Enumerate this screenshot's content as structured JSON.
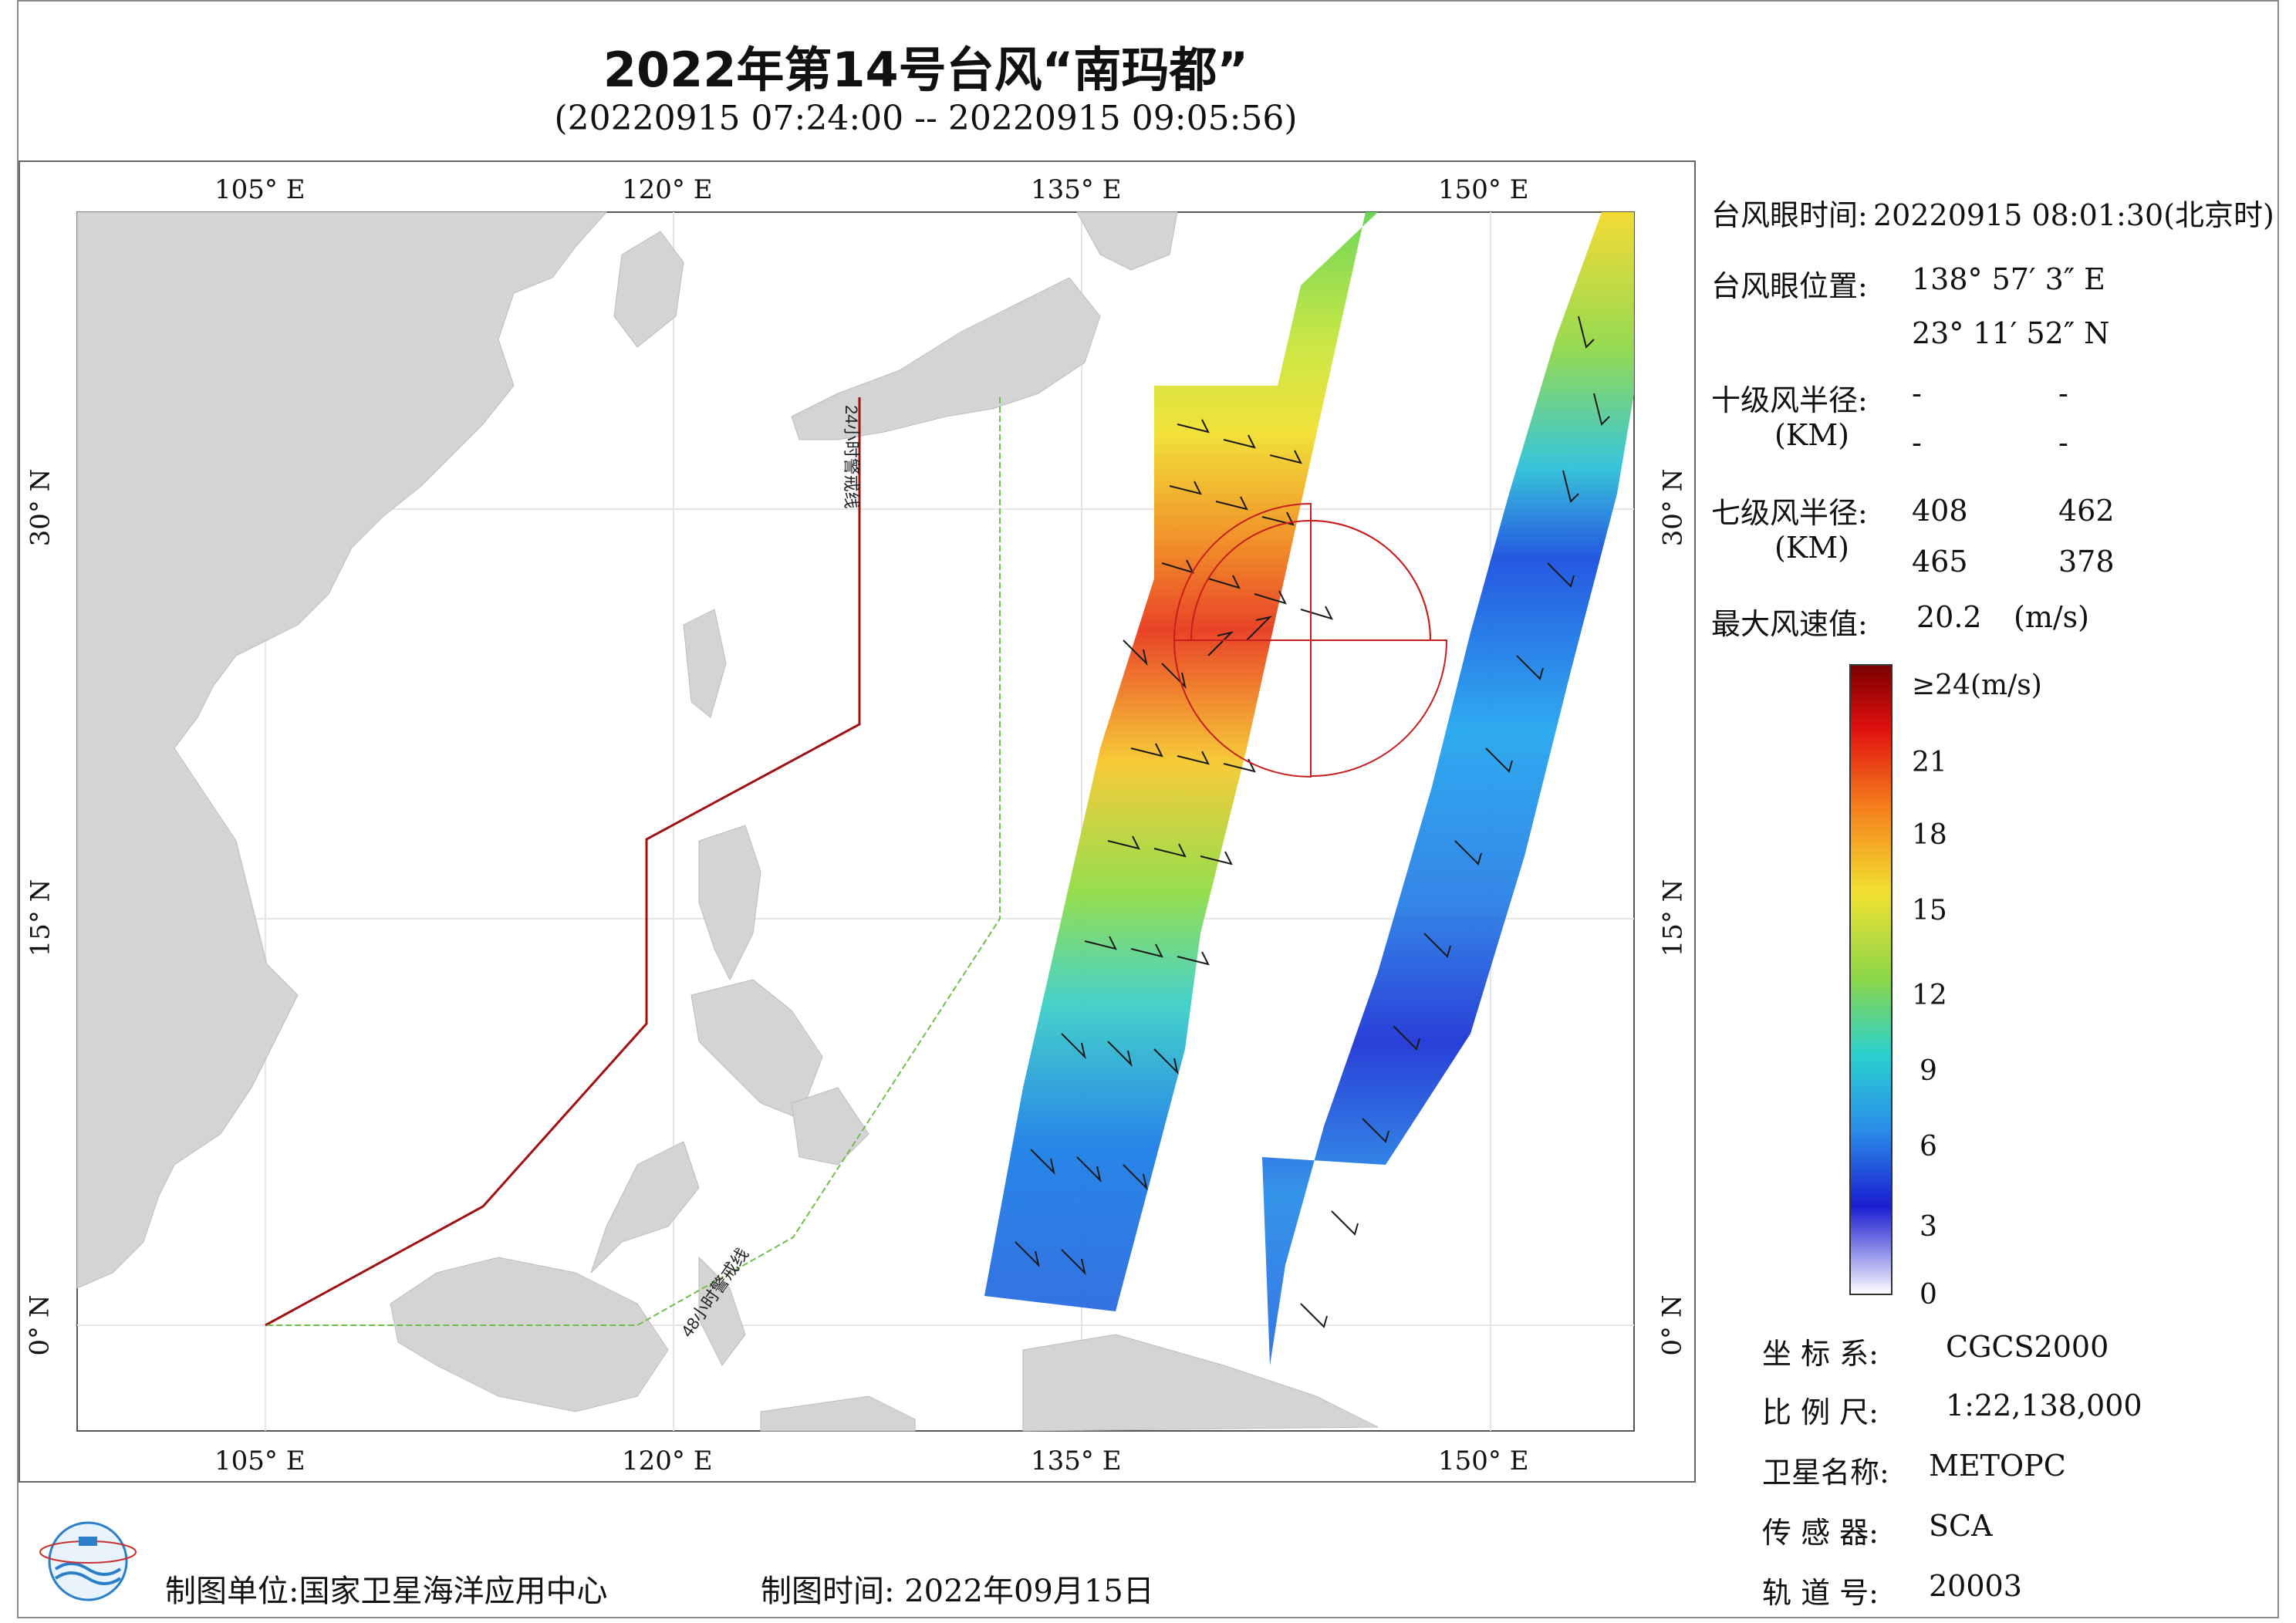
{
  "title": "2022年第14号台风“南玛都”",
  "subtitle": "(20220915 07:24:00 -- 20220915 09:05:56)",
  "axes": {
    "lon_labels": [
      "105° E",
      "120° E",
      "135° E",
      "150° E"
    ],
    "lat_labels": [
      "30° N",
      "15° N",
      "0° N"
    ]
  },
  "map": {
    "warning_24h": "24小时警戒线",
    "warning_48h": "48小时警戒线",
    "land_color": "#d4d4d4",
    "wind_radius_color": "#c81e1e"
  },
  "info": {
    "eye_time_label": "台风眼时间:",
    "eye_time_value": "20220915 08:01:30(北京时)",
    "eye_pos_label": "台风眼位置:",
    "eye_lon": "138° 57′ 3″ E",
    "eye_lat": "23° 11′ 52″ N",
    "r10_label": "十级风半径:",
    "r10_unit": "(KM)",
    "r10_values": [
      "-",
      "-",
      "-",
      "-"
    ],
    "r7_label": "七级风半径:",
    "r7_unit": "(KM)",
    "r7_values": [
      "408",
      "462",
      "465",
      "378"
    ],
    "max_wind_label": "最大风速值:",
    "max_wind_value": "20.2",
    "max_wind_unit": "(m/s)"
  },
  "colorbar": {
    "ticks": [
      "≥24(m/s)",
      "21",
      "18",
      "15",
      "12",
      "9",
      "6",
      "3",
      "0"
    ]
  },
  "meta": {
    "crs_label": "坐 标 系:",
    "crs_value": "CGCS2000",
    "scale_label": "比 例 尺:",
    "scale_value": "1:22,138,000",
    "sat_label": "卫星名称:",
    "sat_value": "METOPC",
    "sensor_label": "传 感 器:",
    "sensor_value": "SCA",
    "orbit_label": "轨 道 号:",
    "orbit_value": "20003"
  },
  "footer": {
    "producer": "制图单位:国家卫星海洋应用中心",
    "date": "制图时间:  2022年09月15日"
  }
}
